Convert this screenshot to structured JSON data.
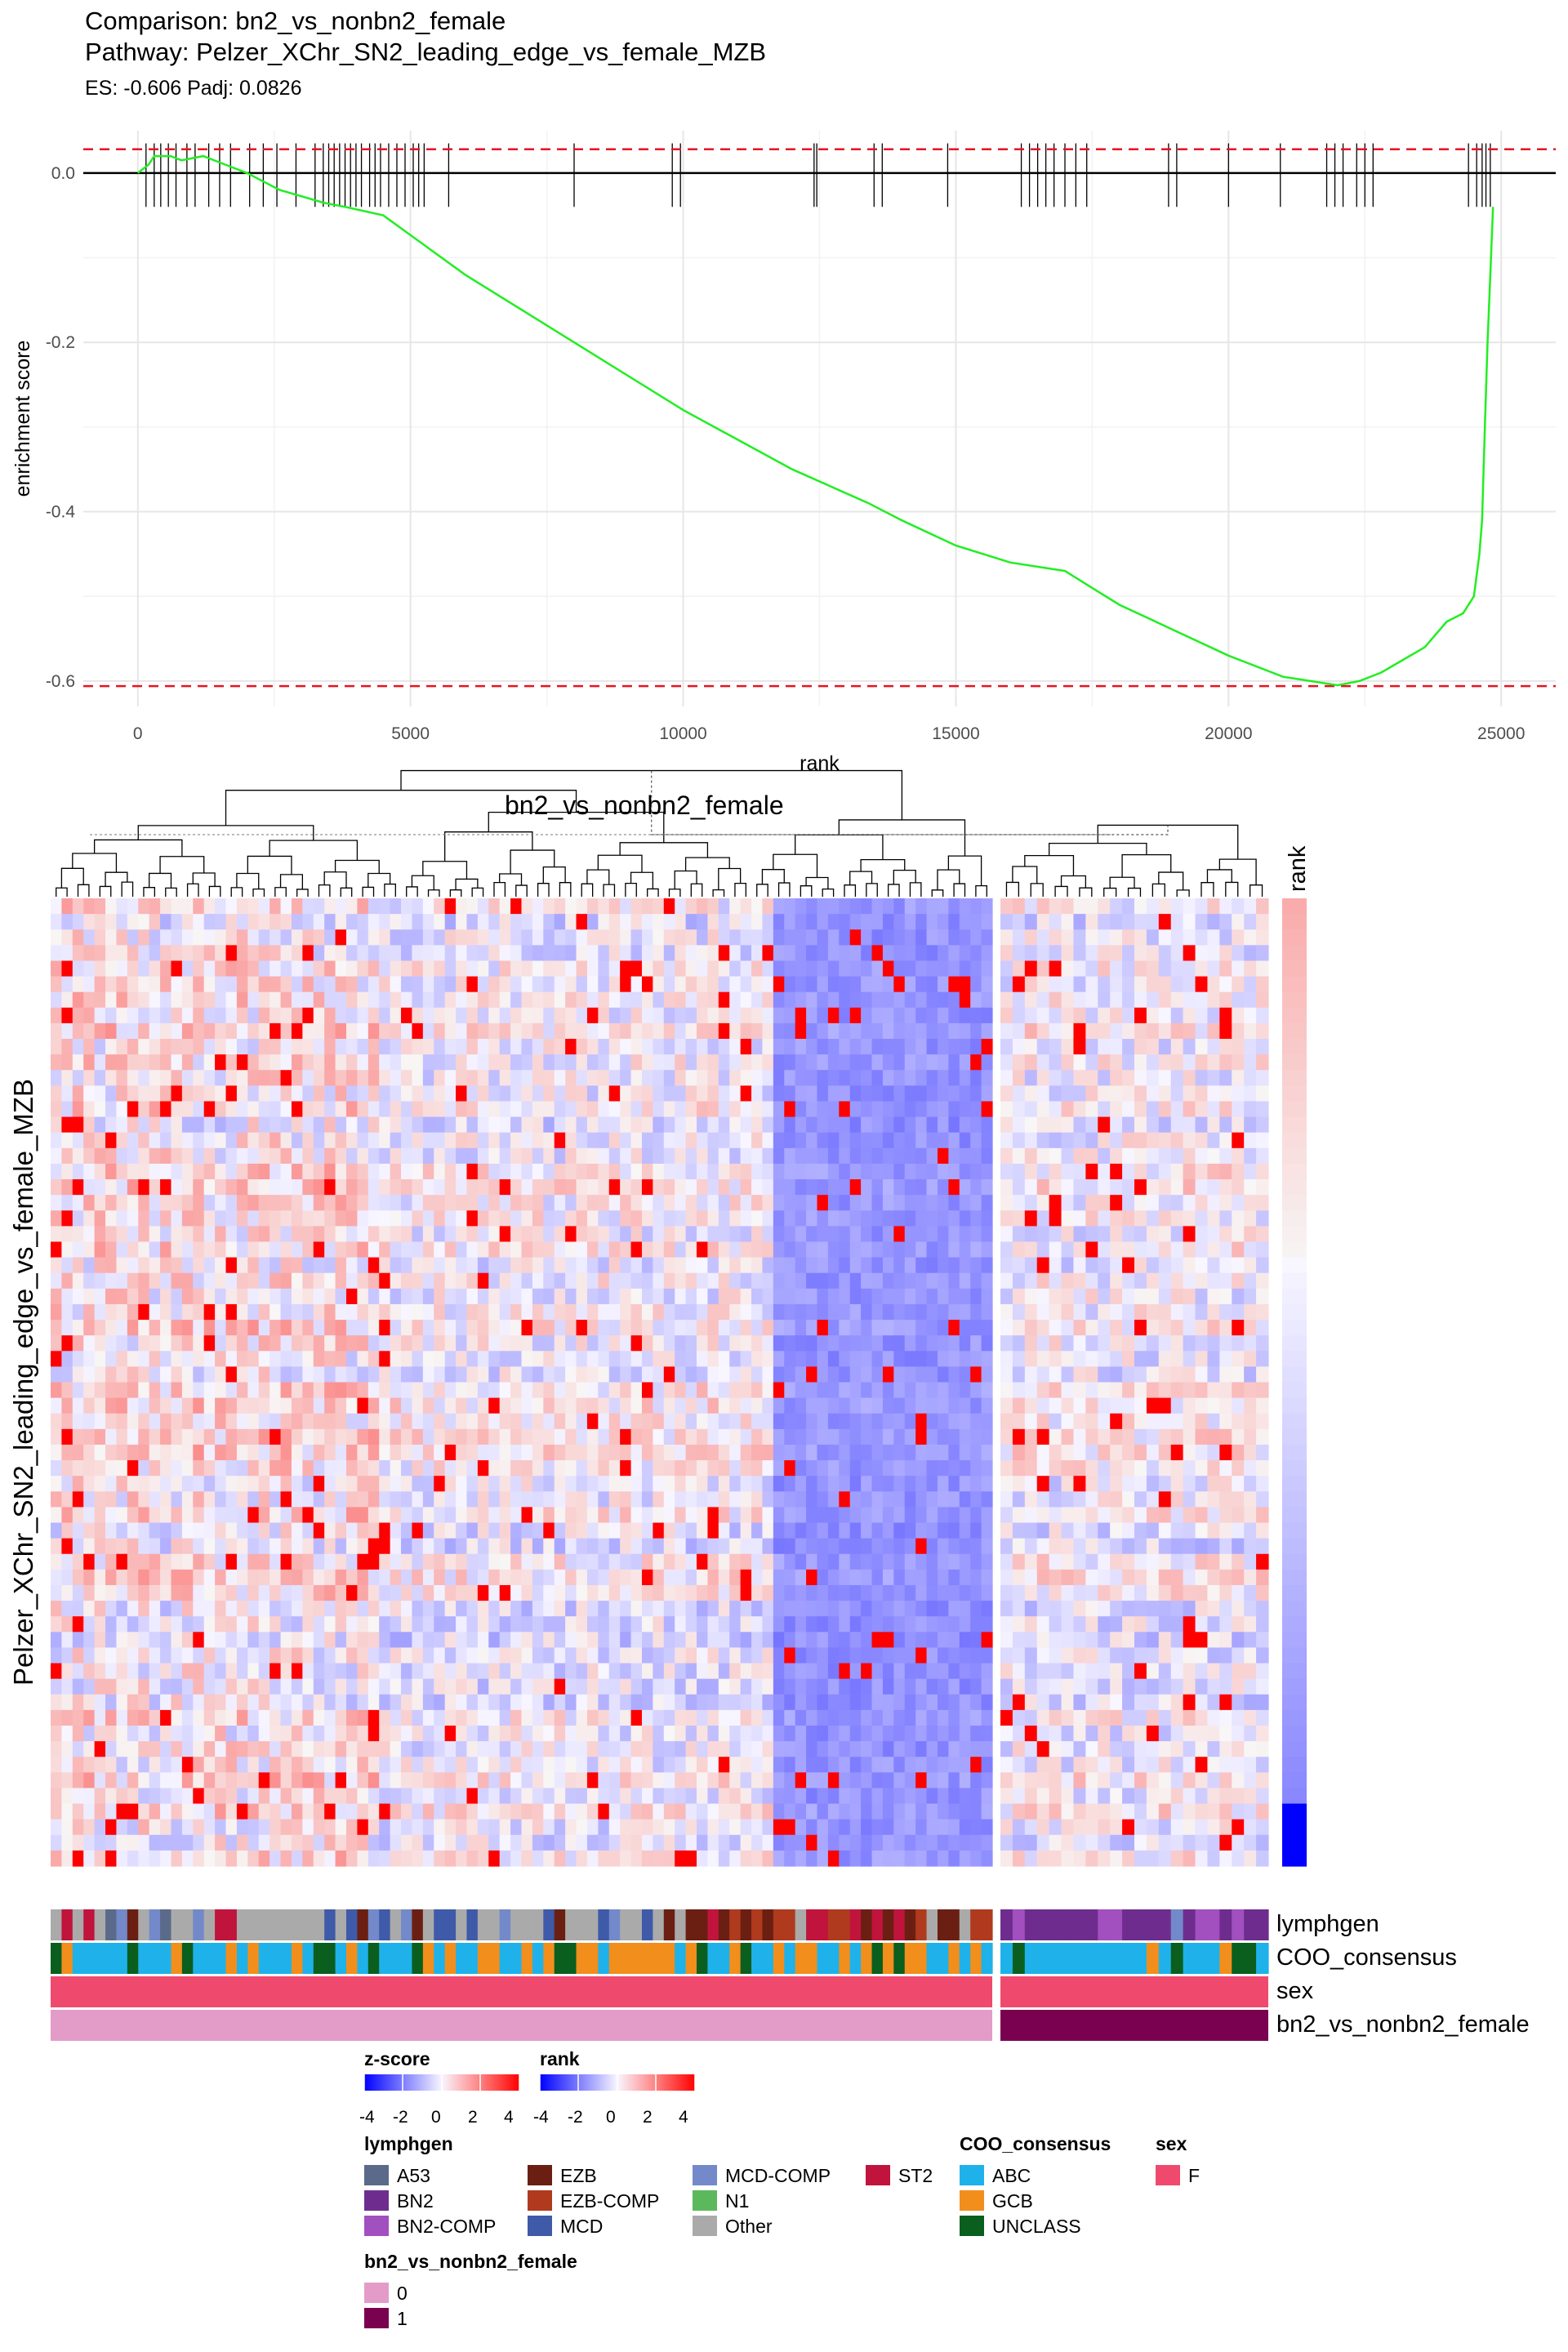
{
  "chart_data": [
    {
      "type": "line",
      "title": "Comparison: bn2_vs_nonbn2_female",
      "subtitle": "Pathway: Pelzer_XChr_SN2_leading_edge_vs_female_MZB",
      "caption": "ES: -0.606 Padj: 0.0826",
      "xlabel": "rank",
      "ylabel": "enrichment score",
      "xlim": [
        -1000,
        26000
      ],
      "ylim": [
        -0.63,
        0.05
      ],
      "x_ticks": [
        0,
        5000,
        10000,
        15000,
        20000,
        25000
      ],
      "y_ticks": [
        0.0,
        -0.2,
        -0.4,
        -0.6
      ],
      "x_tick_labels": [
        "0",
        "5000",
        "10000",
        "15000",
        "20000",
        "25000"
      ],
      "y_tick_labels": [
        "0.0",
        "-0.2",
        "-0.4",
        "-0.6"
      ],
      "hlines_dashed": [
        0.028,
        -0.606
      ],
      "hline_solid": 0.0,
      "series": [
        {
          "x": [
            0,
            200,
            300,
            600,
            800,
            1200,
            1600,
            2000,
            2600,
            3400,
            3800,
            4500,
            6000,
            8000,
            10000,
            12000,
            13400,
            14000,
            15000,
            16000,
            17000,
            17500,
            18000,
            19000,
            20000,
            21000,
            21500,
            22000,
            22400,
            22800,
            23200,
            23600,
            24000,
            24300,
            24500,
            24600,
            24650,
            24700,
            24750,
            24800,
            24850
          ],
          "y": [
            0.0,
            0.01,
            0.02,
            0.02,
            0.015,
            0.02,
            0.01,
            0.0,
            -0.02,
            -0.035,
            -0.04,
            -0.05,
            -0.12,
            -0.2,
            -0.28,
            -0.35,
            -0.39,
            -0.41,
            -0.44,
            -0.46,
            -0.47,
            -0.49,
            -0.51,
            -0.54,
            -0.57,
            -0.595,
            -0.6,
            -0.605,
            -0.6,
            -0.59,
            -0.575,
            -0.56,
            -0.53,
            -0.52,
            -0.5,
            -0.45,
            -0.41,
            -0.3,
            -0.2,
            -0.12,
            -0.04
          ]
        }
      ],
      "gene_hits": [
        150,
        300,
        420,
        560,
        700,
        900,
        1050,
        1300,
        1500,
        1700,
        2050,
        2300,
        2550,
        2900,
        3250,
        3400,
        3500,
        3600,
        3700,
        3800,
        3900,
        4000,
        4100,
        4250,
        4350,
        4450,
        4600,
        4750,
        4900,
        5050,
        5150,
        5250,
        5700,
        8000,
        9800,
        9950,
        12400,
        12450,
        13500,
        13650,
        14850,
        16200,
        16350,
        16500,
        16650,
        16800,
        17000,
        17200,
        17400,
        18900,
        19050,
        20000,
        20950,
        21800,
        21950,
        22100,
        22350,
        22500,
        22650,
        24400,
        24550,
        24650,
        24720,
        24800
      ]
    },
    {
      "type": "heatmap",
      "title": "bn2_vs_nonbn2_female",
      "row_label": "Pelzer_XChr_SN2_leading_edge_vs_female_MZB",
      "rank_label": "rank",
      "rows": 62,
      "columns_left": 86,
      "columns_right": 22,
      "annotation_rows": [
        "lymphgen",
        "COO_consensus",
        "sex",
        "bn2_vs_nonbn2_female"
      ],
      "legends": {
        "zscore": {
          "title": "z-score",
          "ticks": [
            "-4",
            "-2",
            "0",
            "2",
            "4"
          ]
        },
        "rank": {
          "title": "rank",
          "ticks": [
            "-4",
            "-2",
            "0",
            "2",
            "4"
          ]
        },
        "lymphgen": {
          "title": "lymphgen",
          "items": [
            {
              "label": "A53",
              "color": "#5b6a8a"
            },
            {
              "label": "BN2",
              "color": "#6e2d8e"
            },
            {
              "label": "BN2-COMP",
              "color": "#a24fbf"
            },
            {
              "label": "EZB",
              "color": "#6b1f12"
            },
            {
              "label": "EZB-COMP",
              "color": "#b03a1e"
            },
            {
              "label": "MCD",
              "color": "#3e5aa8"
            },
            {
              "label": "MCD-COMP",
              "color": "#7389c9"
            },
            {
              "label": "N1",
              "color": "#5cb85c"
            },
            {
              "label": "Other",
              "color": "#aaaaaa"
            },
            {
              "label": "ST2",
              "color": "#c0143c"
            }
          ]
        },
        "coo": {
          "title": "COO_consensus",
          "items": [
            {
              "label": "ABC",
              "color": "#1fb1ea"
            },
            {
              "label": "GCB",
              "color": "#f18e1c"
            },
            {
              "label": "UNCLASS",
              "color": "#0a5e1e"
            }
          ]
        },
        "sex": {
          "title": "sex",
          "items": [
            {
              "label": "F",
              "color": "#ef4a6e"
            }
          ]
        },
        "group": {
          "title": "bn2_vs_nonbn2_female",
          "items": [
            {
              "label": "0",
              "color": "#e39cc8"
            },
            {
              "label": "1",
              "color": "#7a0050"
            }
          ]
        }
      }
    }
  ]
}
